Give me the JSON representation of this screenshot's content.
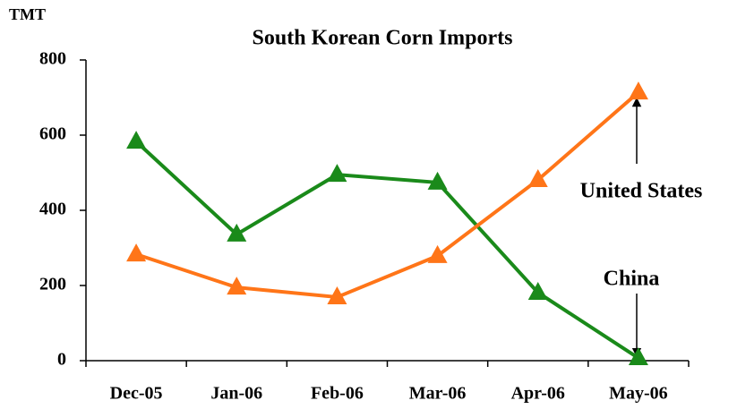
{
  "chart_data": {
    "type": "line",
    "title": "South Korean Corn Imports",
    "y_label": "TMT",
    "categories": [
      "Dec-05",
      "Jan-06",
      "Feb-06",
      "Mar-06",
      "Apr-06",
      "May-06"
    ],
    "series": [
      {
        "name": "China",
        "color": "#1a8a1a",
        "values": [
          583,
          336,
          495,
          474,
          181,
          7
        ]
      },
      {
        "name": "United States",
        "color": "#ff7518",
        "values": [
          283,
          195,
          169,
          279,
          481,
          714
        ]
      }
    ],
    "ylim": [
      0,
      800
    ],
    "yticks": [
      0,
      200,
      400,
      600,
      800
    ],
    "grid": false
  }
}
